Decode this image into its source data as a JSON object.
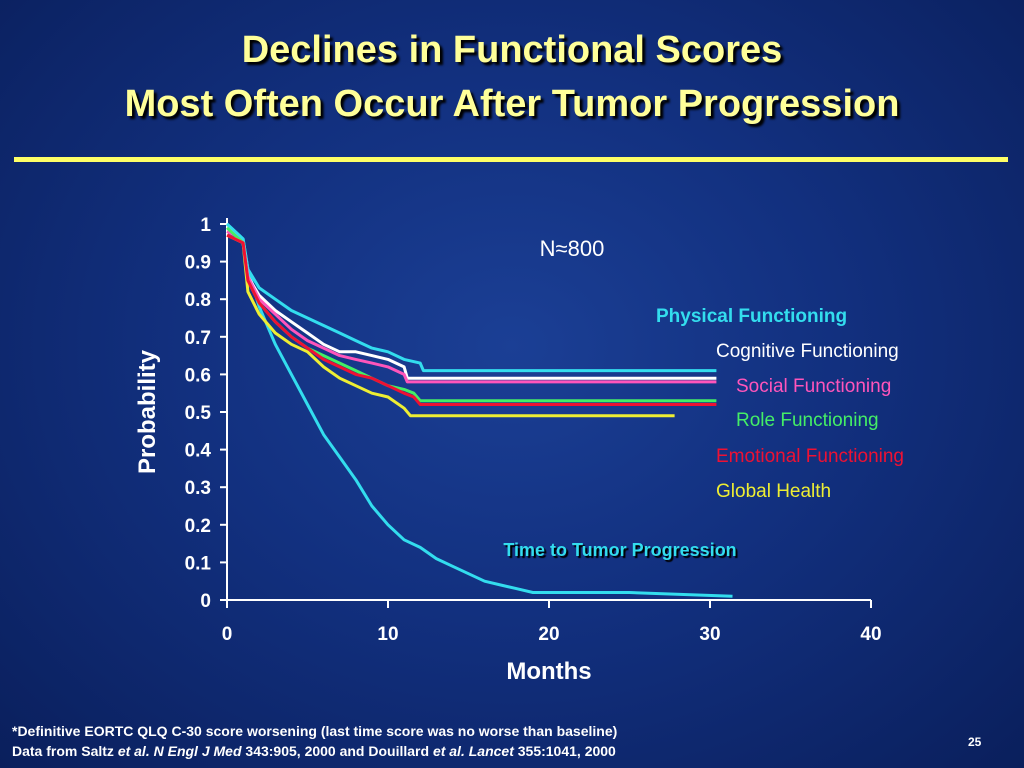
{
  "slide": {
    "title_line1": "Declines in Functional Scores",
    "title_line2": "Most Often Occur After Tumor Progression",
    "footnote_line1": "*Definitive EORTC QLQ C-30 score worsening (last time score was no worse than baseline)",
    "footnote_line2_a": "Data from Saltz ",
    "footnote_line2_b": "et al. N Engl J Med",
    "footnote_line2_c": " 343:905, 2000 and Douillard ",
    "footnote_line2_d": "et al. Lancet",
    "footnote_line2_e": " 355:1041, 2000",
    "page_number": "25"
  },
  "colors": {
    "title": "#ffff99",
    "rule": "#ffff66",
    "axis": "#ffffff"
  },
  "chart_data": {
    "type": "line",
    "annotation": "N≈800",
    "xlabel": "Months",
    "ylabel": "Probability",
    "xlim": [
      0,
      40
    ],
    "ylim": [
      0,
      1
    ],
    "xticks": [
      "0",
      "10",
      "20",
      "30",
      "40"
    ],
    "yticks": [
      "0",
      "0.1",
      "0.2",
      "0.3",
      "0.4",
      "0.5",
      "0.6",
      "0.7",
      "0.8",
      "0.9",
      "1"
    ],
    "grid": false,
    "legend": "right",
    "series": [
      {
        "name": "Physical Functioning",
        "color": "#33ddee",
        "bold": true,
        "points": [
          [
            0,
            1
          ],
          [
            0.5,
            0.98
          ],
          [
            1,
            0.96
          ],
          [
            1.3,
            0.88
          ],
          [
            2,
            0.83
          ],
          [
            3,
            0.8
          ],
          [
            4,
            0.77
          ],
          [
            5,
            0.75
          ],
          [
            6,
            0.73
          ],
          [
            7,
            0.71
          ],
          [
            8,
            0.69
          ],
          [
            9,
            0.67
          ],
          [
            10,
            0.66
          ],
          [
            11,
            0.64
          ],
          [
            12,
            0.63
          ],
          [
            12.2,
            0.61
          ],
          [
            30.4,
            0.61
          ]
        ]
      },
      {
        "name": "Cognitive Functioning",
        "color": "#ffffff",
        "bold": false,
        "points": [
          [
            0,
            0.99
          ],
          [
            0.5,
            0.97
          ],
          [
            1,
            0.95
          ],
          [
            1.3,
            0.86
          ],
          [
            2,
            0.81
          ],
          [
            3,
            0.77
          ],
          [
            4,
            0.74
          ],
          [
            5,
            0.71
          ],
          [
            6,
            0.68
          ],
          [
            7,
            0.66
          ],
          [
            8,
            0.66
          ],
          [
            9,
            0.65
          ],
          [
            10,
            0.64
          ],
          [
            11,
            0.62
          ],
          [
            11.2,
            0.59
          ],
          [
            30.4,
            0.59
          ]
        ]
      },
      {
        "name": "Social Functioning",
        "color": "#ff55bb",
        "bold": false,
        "points": [
          [
            0,
            0.98
          ],
          [
            0.5,
            0.97
          ],
          [
            1,
            0.95
          ],
          [
            1.3,
            0.86
          ],
          [
            2,
            0.8
          ],
          [
            3,
            0.76
          ],
          [
            4,
            0.72
          ],
          [
            5,
            0.69
          ],
          [
            6,
            0.67
          ],
          [
            7,
            0.65
          ],
          [
            8,
            0.64
          ],
          [
            9,
            0.63
          ],
          [
            10,
            0.62
          ],
          [
            11,
            0.6
          ],
          [
            11.2,
            0.58
          ],
          [
            30.4,
            0.58
          ]
        ]
      },
      {
        "name": "Role Functioning",
        "color": "#44ee66",
        "bold": false,
        "points": [
          [
            0,
            0.99
          ],
          [
            0.5,
            0.97
          ],
          [
            1,
            0.95
          ],
          [
            1.3,
            0.85
          ],
          [
            2,
            0.79
          ],
          [
            3,
            0.74
          ],
          [
            4,
            0.7
          ],
          [
            5,
            0.67
          ],
          [
            6,
            0.65
          ],
          [
            7,
            0.63
          ],
          [
            8,
            0.61
          ],
          [
            9,
            0.59
          ],
          [
            10,
            0.57
          ],
          [
            11,
            0.56
          ],
          [
            11.6,
            0.55
          ],
          [
            12,
            0.53
          ],
          [
            30.4,
            0.53
          ]
        ]
      },
      {
        "name": "Emotional Functioning",
        "color": "#ee1133",
        "bold": false,
        "points": [
          [
            0,
            0.97
          ],
          [
            0.5,
            0.96
          ],
          [
            1,
            0.95
          ],
          [
            1.3,
            0.85
          ],
          [
            2,
            0.79
          ],
          [
            3,
            0.74
          ],
          [
            4,
            0.7
          ],
          [
            5,
            0.67
          ],
          [
            6,
            0.64
          ],
          [
            7,
            0.62
          ],
          [
            8,
            0.6
          ],
          [
            9,
            0.59
          ],
          [
            10,
            0.57
          ],
          [
            11,
            0.55
          ],
          [
            11.6,
            0.54
          ],
          [
            12,
            0.52
          ],
          [
            30.4,
            0.52
          ]
        ]
      },
      {
        "name": "Global Health",
        "color": "#eeee33",
        "bold": false,
        "points": [
          [
            0,
            0.97
          ],
          [
            0.5,
            0.96
          ],
          [
            1,
            0.95
          ],
          [
            1.3,
            0.82
          ],
          [
            2,
            0.76
          ],
          [
            3,
            0.71
          ],
          [
            4,
            0.68
          ],
          [
            5,
            0.66
          ],
          [
            6,
            0.62
          ],
          [
            7,
            0.59
          ],
          [
            8,
            0.57
          ],
          [
            9,
            0.55
          ],
          [
            10,
            0.54
          ],
          [
            11,
            0.51
          ],
          [
            11.4,
            0.49
          ],
          [
            27.8,
            0.49
          ]
        ]
      },
      {
        "name": "Time to Tumor Progression",
        "color": "#33ddee",
        "bold": true,
        "points": [
          [
            0,
            1
          ],
          [
            0.5,
            0.98
          ],
          [
            1,
            0.96
          ],
          [
            1.3,
            0.88
          ],
          [
            2,
            0.78
          ],
          [
            3,
            0.68
          ],
          [
            4,
            0.6
          ],
          [
            5,
            0.52
          ],
          [
            6,
            0.44
          ],
          [
            7,
            0.38
          ],
          [
            8,
            0.32
          ],
          [
            9,
            0.25
          ],
          [
            10,
            0.2
          ],
          [
            11,
            0.16
          ],
          [
            12,
            0.14
          ],
          [
            13,
            0.11
          ],
          [
            14,
            0.09
          ],
          [
            15,
            0.07
          ],
          [
            16,
            0.05
          ],
          [
            17,
            0.04
          ],
          [
            18,
            0.03
          ],
          [
            19,
            0.02
          ],
          [
            20,
            0.02
          ],
          [
            25,
            0.02
          ],
          [
            31.4,
            0.01
          ]
        ]
      }
    ]
  }
}
